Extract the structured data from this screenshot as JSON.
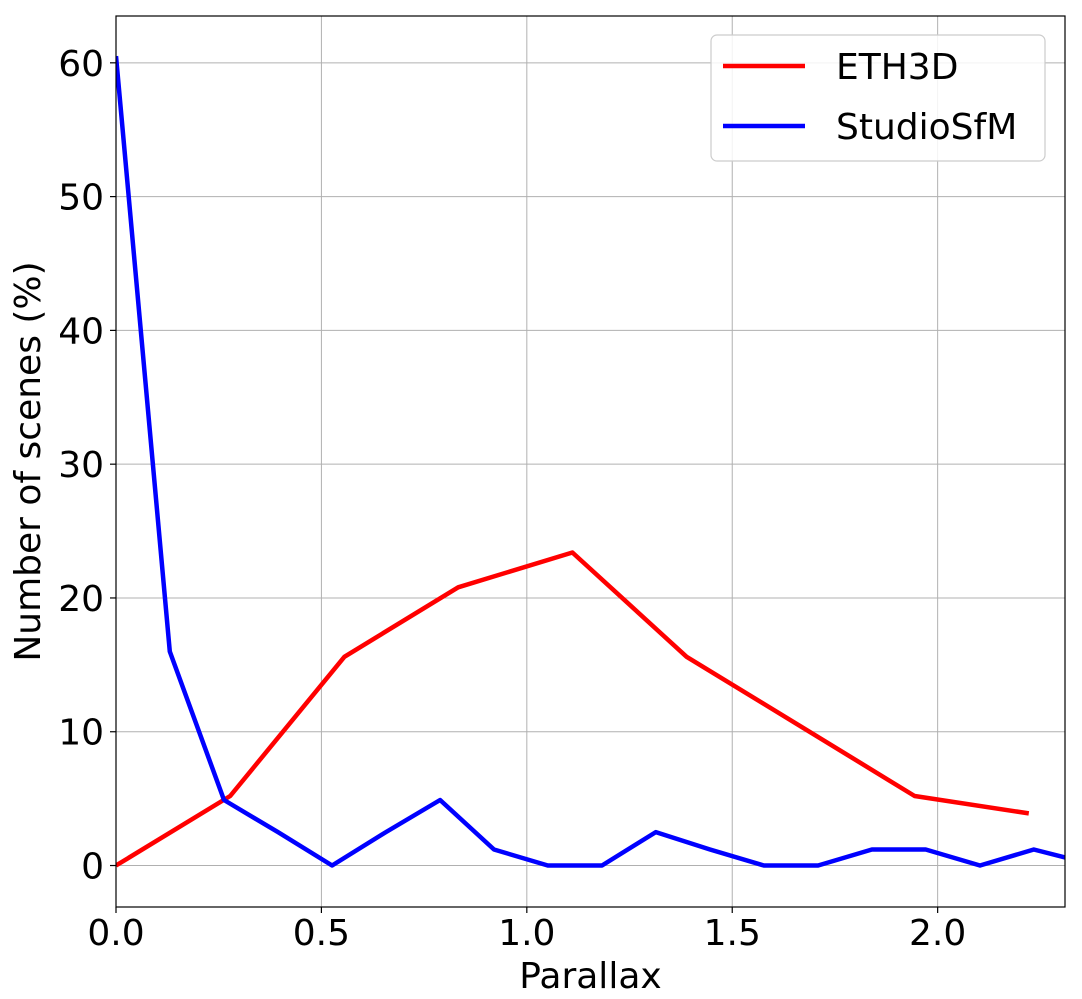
{
  "chart_data": {
    "type": "line",
    "title": "",
    "xlabel": "Parallax",
    "ylabel": "Number of scenes (%)",
    "xlim": [
      0.0,
      2.31
    ],
    "ylim": [
      -3.1,
      63.5
    ],
    "xticks": [
      0.0,
      0.5,
      1.0,
      1.5,
      2.0
    ],
    "xtick_labels": [
      "0.0",
      "0.5",
      "1.0",
      "1.5",
      "2.0"
    ],
    "yticks": [
      0,
      10,
      20,
      30,
      40,
      50,
      60
    ],
    "ytick_labels": [
      "0",
      "10",
      "20",
      "30",
      "40",
      "50",
      "60"
    ],
    "grid": true,
    "legend_position": "top-right",
    "series": [
      {
        "name": "ETH3D",
        "color": "#ff0000",
        "x": [
          0.0,
          0.278,
          0.556,
          0.833,
          1.111,
          1.389,
          1.667,
          1.944,
          2.222
        ],
        "y": [
          0.0,
          5.2,
          15.6,
          20.8,
          23.4,
          15.6,
          10.4,
          5.2,
          3.9
        ]
      },
      {
        "name": "StudioSfM",
        "color": "#0000ff",
        "x": [
          0.0,
          0.131,
          0.263,
          0.394,
          0.526,
          0.657,
          0.789,
          0.92,
          1.051,
          1.183,
          1.314,
          1.446,
          1.577,
          1.709,
          1.84,
          1.971,
          2.103,
          2.234,
          2.31
        ],
        "y": [
          60.5,
          16.0,
          4.9,
          2.5,
          0.0,
          2.5,
          4.9,
          1.2,
          0.0,
          0.0,
          2.5,
          1.2,
          0.0,
          0.0,
          1.2,
          1.2,
          0.0,
          1.2,
          0.6
        ]
      }
    ]
  }
}
